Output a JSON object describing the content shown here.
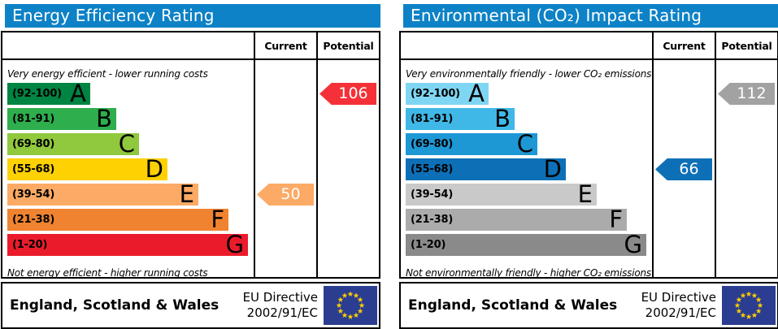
{
  "chart_data": [
    {
      "type": "bar",
      "title": "Energy Efficiency Rating",
      "orientation": "horizontal",
      "categories": [
        "A (92-100)",
        "B (81-91)",
        "C (69-80)",
        "D (55-68)",
        "E (39-54)",
        "F (21-38)",
        "G (1-20)"
      ],
      "band_bar_relative_widths": [
        102,
        134,
        162,
        197,
        235,
        272,
        296
      ],
      "series": [
        {
          "name": "Current",
          "value": 50,
          "band": "E"
        },
        {
          "name": "Potential",
          "value": 106,
          "band": "A"
        }
      ],
      "top_caption": "Very energy efficient - lower running costs",
      "bottom_caption": "Not energy efficient - higher running costs",
      "footer": "England, Scotland & Wales | EU Directive 2002/91/EC"
    },
    {
      "type": "bar",
      "title": "Environmental (CO₂) Impact Rating",
      "orientation": "horizontal",
      "categories": [
        "A (92-100)",
        "B (81-91)",
        "C (69-80)",
        "D (55-68)",
        "E (39-54)",
        "F (21-38)",
        "G (1-20)"
      ],
      "band_bar_relative_widths": [
        102,
        134,
        162,
        197,
        235,
        272,
        296
      ],
      "series": [
        {
          "name": "Current",
          "value": 66,
          "band": "D"
        },
        {
          "name": "Potential",
          "value": 112,
          "band": "A"
        }
      ],
      "top_caption": "Very environmentally friendly - lower CO₂ emissions",
      "bottom_caption": "Not environmentally friendly - higher CO₂ emissions",
      "footer": "England, Scotland & Wales | EU Directive 2002/91/EC"
    }
  ],
  "colors": {
    "header_blue": "#0e82c6",
    "eu_flag_blue": "#2b3d90",
    "eu_flag_star": "#ffcc00"
  },
  "panels": [
    {
      "title": "Energy Efficiency Rating",
      "col_current": "Current",
      "col_potential": "Potential",
      "top_caption": "Very energy efficient - lower running costs",
      "bottom_caption": "Not energy efficient - higher running costs",
      "bands": [
        {
          "range": "(92-100)",
          "letter": "A",
          "color": "#008443"
        },
        {
          "range": "(81-91)",
          "letter": "B",
          "color": "#2eae4d"
        },
        {
          "range": "(69-80)",
          "letter": "C",
          "color": "#90c83e"
        },
        {
          "range": "(55-68)",
          "letter": "D",
          "color": "#fed102"
        },
        {
          "range": "(39-54)",
          "letter": "E",
          "color": "#fcaa65"
        },
        {
          "range": "(21-38)",
          "letter": "F",
          "color": "#ef8330"
        },
        {
          "range": "(1-20)",
          "letter": "G",
          "color": "#ea1c2b"
        }
      ],
      "current_arrow": {
        "value": "50",
        "band_index": 4,
        "color": "#fcaa65"
      },
      "potential_arrow": {
        "value": "106",
        "band_index": 0,
        "color": "#f43138"
      },
      "footer_region": "England, Scotland & Wales",
      "footer_directive_1": "EU Directive",
      "footer_directive_2": "2002/91/EC"
    },
    {
      "title": "Environmental (CO₂) Impact Rating",
      "col_current": "Current",
      "col_potential": "Potential",
      "top_caption": "Very environmentally friendly - lower CO₂ emissions",
      "bottom_caption": "Not environmentally friendly - higher CO₂ emissions",
      "bands": [
        {
          "range": "(92-100)",
          "letter": "A",
          "color": "#7fd6f3"
        },
        {
          "range": "(81-91)",
          "letter": "B",
          "color": "#3fb8e7"
        },
        {
          "range": "(69-80)",
          "letter": "C",
          "color": "#1e98d4"
        },
        {
          "range": "(55-68)",
          "letter": "D",
          "color": "#0d70b7"
        },
        {
          "range": "(39-54)",
          "letter": "E",
          "color": "#c9c9c9"
        },
        {
          "range": "(21-38)",
          "letter": "F",
          "color": "#ababab"
        },
        {
          "range": "(1-20)",
          "letter": "G",
          "color": "#8a8a8a"
        }
      ],
      "current_arrow": {
        "value": "66",
        "band_index": 3,
        "color": "#0d70b7"
      },
      "potential_arrow": {
        "value": "112",
        "band_index": 0,
        "color": "#a2a2a2"
      },
      "footer_region": "England, Scotland & Wales",
      "footer_directive_1": "EU Directive",
      "footer_directive_2": "2002/91/EC"
    }
  ]
}
